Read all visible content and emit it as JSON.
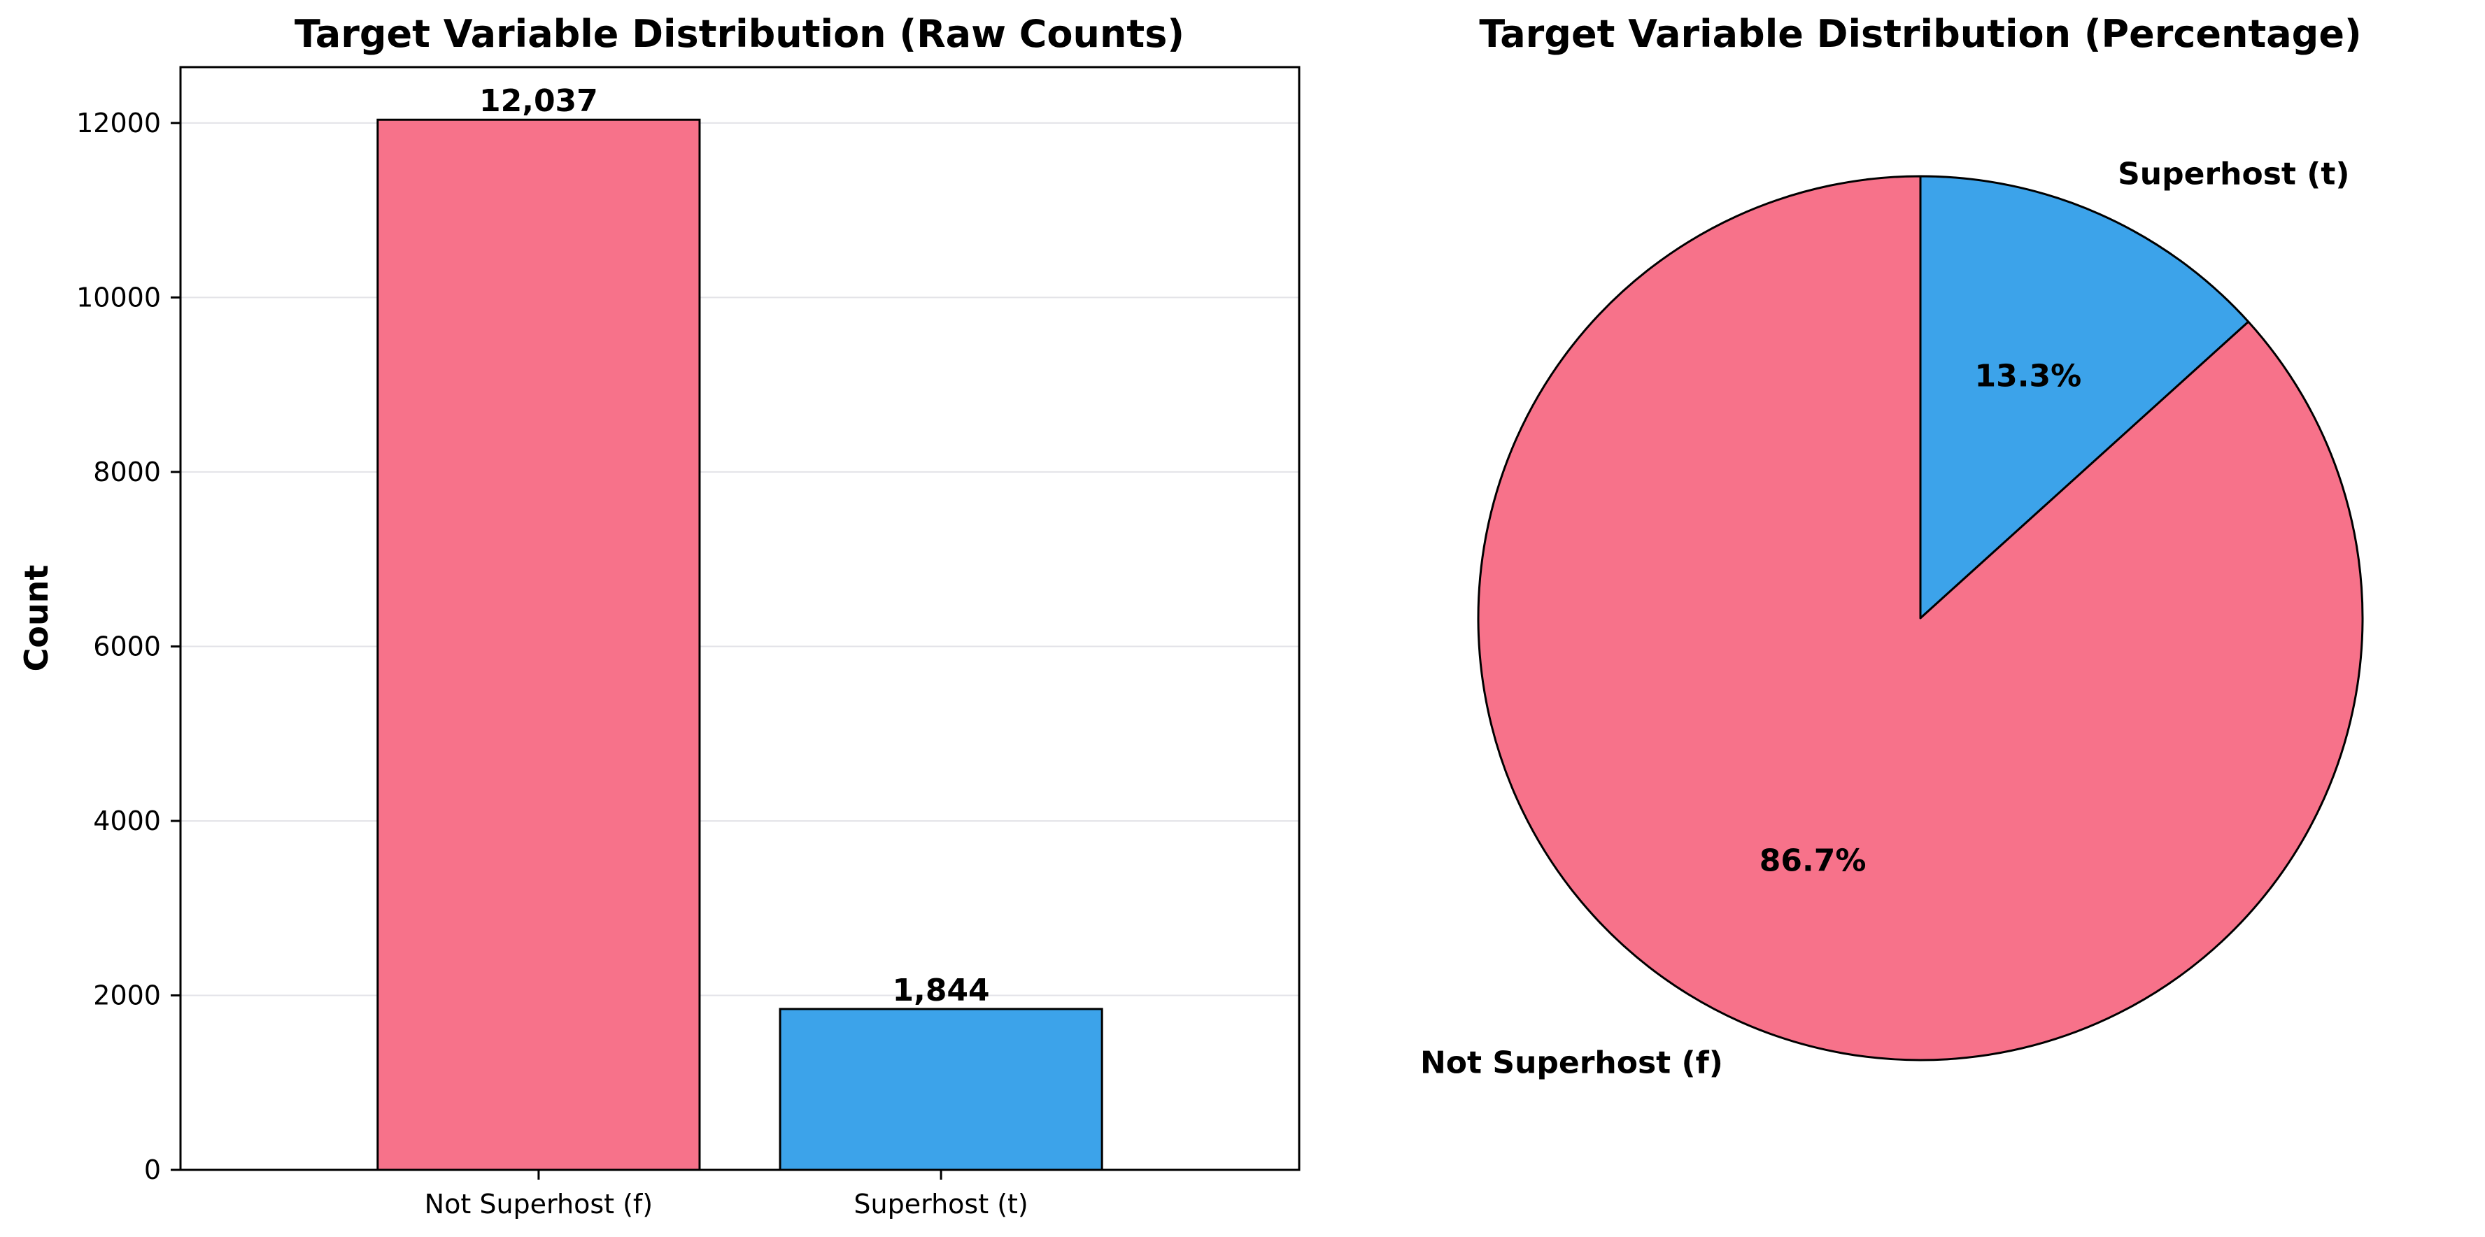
{
  "chart_data": [
    {
      "type": "bar",
      "title": "Target Variable Distribution (Raw Counts)",
      "xlabel": "",
      "ylabel": "Count",
      "categories": [
        "Not Superhost (f)",
        "Superhost (t)"
      ],
      "values": [
        12037,
        1844
      ],
      "value_labels": [
        "12,037",
        "1,844"
      ],
      "colors": [
        "#f7728a",
        "#3ca3ea"
      ],
      "ylim": [
        0,
        12640
      ],
      "yticks": [
        0,
        2000,
        4000,
        6000,
        8000,
        10000,
        12000
      ],
      "grid": "y"
    },
    {
      "type": "pie",
      "title": "Target Variable Distribution (Percentage)",
      "labels": [
        "Not Superhost (f)",
        "Superhost (t)"
      ],
      "values": [
        86.7,
        13.3
      ],
      "value_labels": [
        "86.7%",
        "13.3%"
      ],
      "colors": [
        "#f7728a",
        "#3ca3ea"
      ],
      "start_angle_deg": 90,
      "direction": "clockwise-for-second-slice"
    }
  ]
}
